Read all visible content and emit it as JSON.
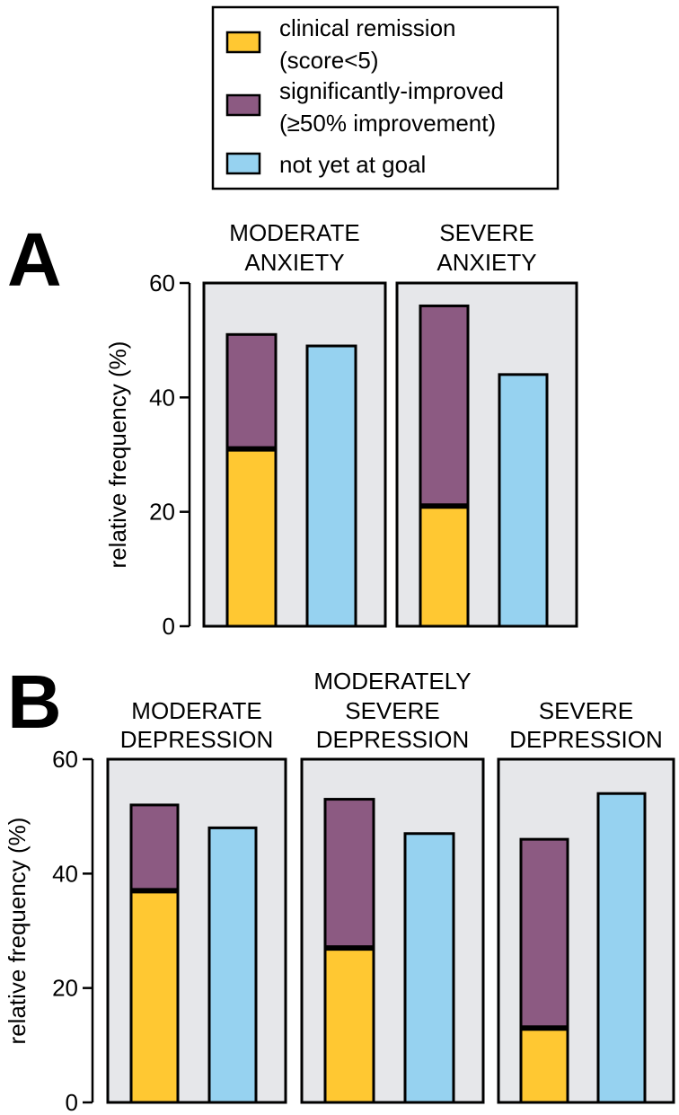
{
  "legend": {
    "items": [
      {
        "label_lines": [
          "clinical remission",
          "(score<5)"
        ],
        "color": "#FFC832"
      },
      {
        "label_lines": [
          "significantly-improved",
          "(≥50% improvement)"
        ],
        "color": "#8C5A82"
      },
      {
        "label_lines": [
          "not yet at goal"
        ],
        "color": "#96D2F0"
      }
    ]
  },
  "colors": {
    "panel_bg": "#E6E7EA",
    "remission": "#FFC832",
    "improved": "#8C5A82",
    "not_at_goal": "#96D2F0"
  },
  "chart_data": [
    {
      "type": "bar",
      "stacked": true,
      "panel_letter": "A",
      "ylabel": "relative frequency (%)",
      "ylim": [
        0,
        60
      ],
      "yticks": [
        0,
        20,
        40,
        60
      ],
      "groups": [
        {
          "title_lines": [
            "MODERATE",
            "ANXIETY"
          ],
          "remission": 31,
          "improved": 20,
          "not_at_goal": 49
        },
        {
          "title_lines": [
            "SEVERE",
            "ANXIETY"
          ],
          "remission": 21,
          "improved": 35,
          "not_at_goal": 44
        }
      ]
    },
    {
      "type": "bar",
      "stacked": true,
      "panel_letter": "B",
      "ylabel": "relative frequency (%)",
      "ylim": [
        0,
        60
      ],
      "yticks": [
        0,
        20,
        40,
        60
      ],
      "groups": [
        {
          "title_lines": [
            "MODERATE",
            "DEPRESSION"
          ],
          "remission": 37,
          "improved": 15,
          "not_at_goal": 48
        },
        {
          "title_lines": [
            "MODERATELY",
            "SEVERE",
            "DEPRESSION"
          ],
          "remission": 27,
          "improved": 26,
          "not_at_goal": 47
        },
        {
          "title_lines": [
            "SEVERE",
            "DEPRESSION"
          ],
          "remission": 13,
          "improved": 33,
          "not_at_goal": 54
        }
      ]
    }
  ]
}
